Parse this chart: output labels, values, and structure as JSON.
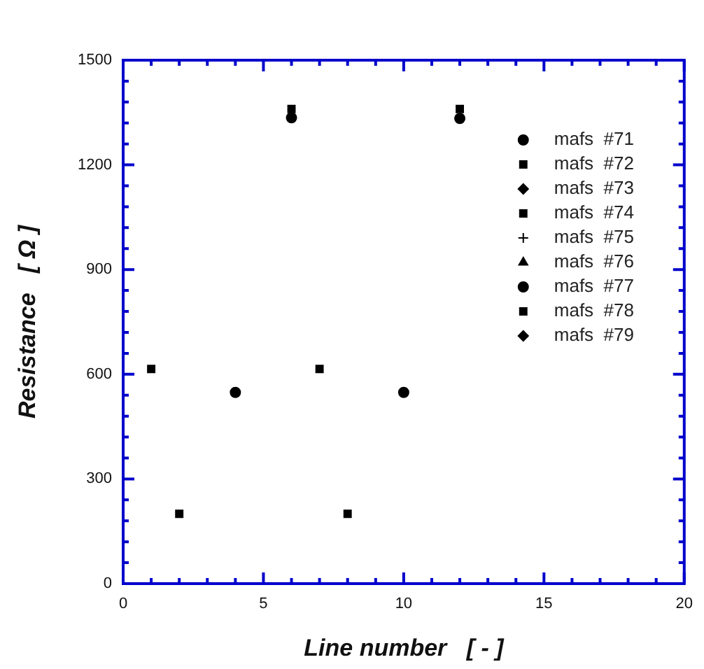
{
  "chart_data": {
    "type": "scatter",
    "xlabel": "Line number   [ - ]",
    "ylabel": "Resistance   [ Ω ]",
    "xlim": [
      0,
      20
    ],
    "ylim": [
      0,
      1500
    ],
    "xticks": [
      0,
      5,
      10,
      15,
      20
    ],
    "yticks": [
      0,
      300,
      600,
      900,
      1200,
      1500
    ],
    "grid": false,
    "legend": "right",
    "series": [
      {
        "name": "mafs  #71",
        "color": "#000000",
        "marker": "circle",
        "x": [
          6,
          12
        ],
        "values": [
          1335,
          1333
        ]
      },
      {
        "name": "mafs  #72",
        "color": "#000000",
        "marker": "square",
        "x": [
          6,
          12
        ],
        "values": [
          1360,
          1360
        ]
      },
      {
        "name": "mafs  #73",
        "color": "#000000",
        "marker": "diamond"
      },
      {
        "name": "mafs  #74",
        "color": "#000000",
        "marker": "square"
      },
      {
        "name": "mafs  #75",
        "color": "#000000",
        "marker": "cross"
      },
      {
        "name": "mafs  #76",
        "color": "#000000",
        "marker": "triangle"
      },
      {
        "name": "mafs  #77",
        "color": "#000000",
        "marker": "circle",
        "x": [
          4,
          10
        ],
        "values": [
          548,
          548
        ]
      },
      {
        "name": "mafs  #78",
        "color": "#000000",
        "marker": "square",
        "x": [
          1,
          2,
          7,
          8
        ],
        "values": [
          615,
          200,
          615,
          200
        ]
      },
      {
        "name": "mafs  #79",
        "color": "#000000",
        "marker": "diamond"
      }
    ]
  }
}
